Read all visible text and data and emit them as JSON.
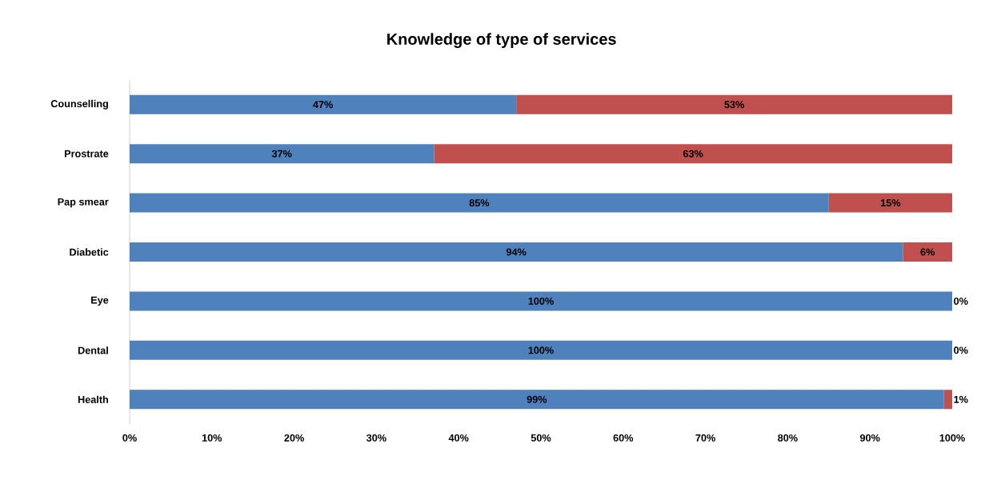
{
  "chart_data": {
    "type": "bar",
    "orientation": "horizontal",
    "stacked": true,
    "title": "Knowledge of  type of services",
    "categories": [
      "Counselling",
      "Prostrate",
      "Pap smear",
      "Diabetic",
      "Eye",
      "Dental",
      "Health"
    ],
    "series": [
      {
        "color": "#4f81bd",
        "values": [
          47,
          37,
          85,
          94,
          100,
          100,
          99
        ],
        "value_labels": [
          "47%",
          "37%",
          "85%",
          "94%",
          "100%",
          "100%",
          "99%"
        ]
      },
      {
        "color": "#c0504d",
        "values": [
          53,
          63,
          15,
          6,
          0,
          0,
          1
        ],
        "value_labels": [
          "53%",
          "63%",
          "15%",
          "6%",
          "0%",
          "0%",
          "1%"
        ]
      }
    ],
    "xlim": [
      0,
      100
    ],
    "xticks": [
      {
        "value": 0,
        "label": "0%"
      },
      {
        "value": 10,
        "label": "10%"
      },
      {
        "value": 20,
        "label": "20%"
      },
      {
        "value": 30,
        "label": "30%"
      },
      {
        "value": 40,
        "label": "40%"
      },
      {
        "value": 50,
        "label": "50%"
      },
      {
        "value": 60,
        "label": "60%"
      },
      {
        "value": 70,
        "label": "70%"
      },
      {
        "value": 80,
        "label": "80%"
      },
      {
        "value": 90,
        "label": "90%"
      },
      {
        "value": 100,
        "label": "100%"
      }
    ],
    "grid": false
  }
}
